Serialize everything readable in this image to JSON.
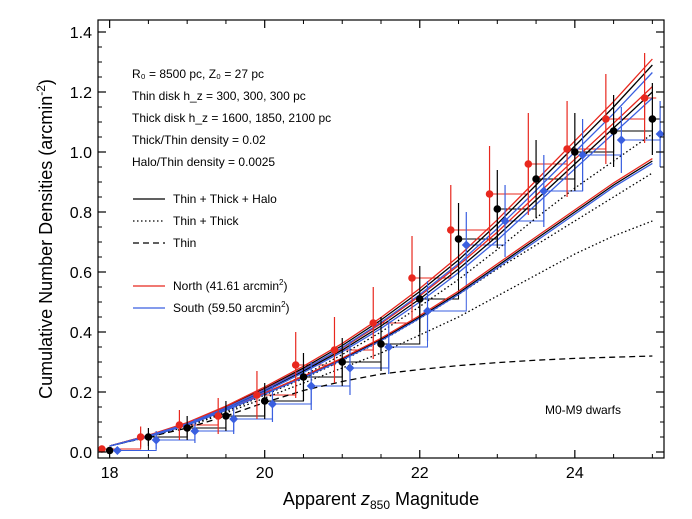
{
  "chart_data": {
    "type": "line",
    "xlabel_prefix": "Apparent ",
    "xlabel_var": "z",
    "xlabel_sub": "850",
    "xlabel_suffix": " Magnitude",
    "ylabel": "Cumulative Number Densities (arcmin",
    "ylabel_sup": "-2",
    "ylabel_close": ")",
    "xlim": [
      17.85,
      25.15
    ],
    "ylim": [
      -0.02,
      1.44
    ],
    "xticks": [
      18,
      20,
      22,
      24
    ],
    "xtick_labels": [
      "18",
      "20",
      "22",
      "24"
    ],
    "yticks": [
      0.0,
      0.2,
      0.4,
      0.6,
      0.8,
      1.0,
      1.2,
      1.4
    ],
    "ytick_labels": [
      "0.0",
      "0.2",
      "0.4",
      "0.6",
      "0.8",
      "1.0",
      "1.2",
      "1.4"
    ],
    "annotations": [
      {
        "id": "r0",
        "text": "R₀ = 8500 pc, Z₀ = 27 pc"
      },
      {
        "id": "thin",
        "text": "Thin disk h_z = 300, 300, 300 pc"
      },
      {
        "id": "thick",
        "text": "Thick disk h_z = 1600, 1850, 2100 pc"
      },
      {
        "id": "ratio1",
        "text": "Thick/Thin density = 0.02"
      },
      {
        "id": "ratio2",
        "text": "Halo/Thin density = 0.0025"
      },
      {
        "id": "label",
        "text": "M0-M9 dwarfs"
      }
    ],
    "legend": [
      {
        "label": "Thin + Thick + Halo",
        "style": "solid",
        "color": "#000000"
      },
      {
        "label": "Thin + Thick",
        "style": "dotted",
        "color": "#000000"
      },
      {
        "label": "Thin",
        "style": "dashed",
        "color": "#000000"
      },
      {
        "label": "North (41.61 arcmin",
        "sup": "2",
        "close": ")",
        "style": "solid",
        "color": "#e8281e"
      },
      {
        "label": "South (59.50 arcmin",
        "sup": "2",
        "close": ")",
        "style": "solid",
        "color": "#3a5fe0"
      }
    ],
    "model_curves": [
      {
        "name": "thin",
        "style": "dashed",
        "color": "#000000",
        "x": [
          18.0,
          18.5,
          19.0,
          19.5,
          20.0,
          20.5,
          21.0,
          21.5,
          22.0,
          22.5,
          23.0,
          23.5,
          24.0,
          24.5,
          25.0
        ],
        "y": [
          0.02,
          0.05,
          0.08,
          0.12,
          0.165,
          0.205,
          0.235,
          0.26,
          0.275,
          0.288,
          0.298,
          0.306,
          0.312,
          0.316,
          0.32
        ]
      },
      {
        "name": "thin+thick low",
        "style": "dotted",
        "color": "#000000",
        "x": [
          18.0,
          18.5,
          19.0,
          19.5,
          20.0,
          20.5,
          21.0,
          21.5,
          22.0,
          22.5,
          23.0,
          23.5,
          24.0,
          24.5,
          25.0
        ],
        "y": [
          0.02,
          0.05,
          0.085,
          0.13,
          0.18,
          0.23,
          0.28,
          0.33,
          0.39,
          0.45,
          0.52,
          0.59,
          0.66,
          0.72,
          0.77
        ]
      },
      {
        "name": "thin+thick mid",
        "style": "dotted",
        "color": "#000000",
        "x": [
          18.0,
          18.5,
          19.0,
          19.5,
          20.0,
          20.5,
          21.0,
          21.5,
          22.0,
          22.5,
          23.0,
          23.5,
          24.0,
          24.5,
          25.0
        ],
        "y": [
          0.02,
          0.052,
          0.088,
          0.135,
          0.19,
          0.245,
          0.305,
          0.37,
          0.445,
          0.525,
          0.61,
          0.69,
          0.77,
          0.85,
          0.93
        ]
      },
      {
        "name": "thin+thick high",
        "style": "dotted",
        "color": "#000000",
        "x": [
          18.0,
          18.5,
          19.0,
          19.5,
          20.0,
          20.5,
          21.0,
          21.5,
          22.0,
          22.5,
          23.0,
          23.5,
          24.0,
          24.5,
          25.0
        ],
        "y": [
          0.02,
          0.053,
          0.09,
          0.14,
          0.195,
          0.255,
          0.325,
          0.4,
          0.485,
          0.575,
          0.675,
          0.78,
          0.88,
          0.97,
          1.06
        ]
      },
      {
        "name": "all low",
        "style": "solid",
        "color": "#000000",
        "x": [
          18.0,
          18.5,
          19.0,
          19.5,
          20.0,
          20.5,
          21.0,
          21.5,
          22.0,
          22.5,
          23.0,
          23.5,
          24.0,
          24.5,
          25.0
        ],
        "y": [
          0.02,
          0.052,
          0.09,
          0.14,
          0.195,
          0.25,
          0.31,
          0.375,
          0.45,
          0.53,
          0.62,
          0.71,
          0.8,
          0.89,
          0.97
        ]
      },
      {
        "name": "all mid",
        "style": "solid",
        "color": "#000000",
        "x": [
          18.0,
          18.5,
          19.0,
          19.5,
          20.0,
          20.5,
          21.0,
          21.5,
          22.0,
          22.5,
          23.0,
          23.5,
          24.0,
          24.5,
          25.0
        ],
        "y": [
          0.02,
          0.054,
          0.093,
          0.145,
          0.205,
          0.27,
          0.34,
          0.42,
          0.51,
          0.61,
          0.72,
          0.84,
          0.96,
          1.08,
          1.2
        ]
      },
      {
        "name": "all high",
        "style": "solid",
        "color": "#000000",
        "x": [
          18.0,
          18.5,
          19.0,
          19.5,
          20.0,
          20.5,
          21.0,
          21.5,
          22.0,
          22.5,
          23.0,
          23.5,
          24.0,
          24.5,
          25.0
        ],
        "y": [
          0.02,
          0.055,
          0.096,
          0.15,
          0.212,
          0.28,
          0.355,
          0.44,
          0.535,
          0.64,
          0.76,
          0.89,
          1.02,
          1.15,
          1.29
        ]
      },
      {
        "name": "north fit low",
        "style": "solid",
        "color": "#e8281e",
        "x": [
          18.0,
          18.5,
          19.0,
          19.5,
          20.0,
          20.5,
          21.0,
          21.5,
          22.0,
          22.5,
          23.0,
          23.5,
          24.0,
          24.5,
          25.0
        ],
        "y": [
          0.02,
          0.053,
          0.091,
          0.141,
          0.197,
          0.253,
          0.313,
          0.379,
          0.455,
          0.536,
          0.627,
          0.717,
          0.807,
          0.897,
          0.978
        ]
      },
      {
        "name": "north fit mid",
        "style": "solid",
        "color": "#e8281e",
        "x": [
          18.0,
          18.5,
          19.0,
          19.5,
          20.0,
          20.5,
          21.0,
          21.5,
          22.0,
          22.5,
          23.0,
          23.5,
          24.0,
          24.5,
          25.0
        ],
        "y": [
          0.02,
          0.055,
          0.095,
          0.148,
          0.209,
          0.275,
          0.346,
          0.428,
          0.52,
          0.622,
          0.733,
          0.855,
          0.976,
          1.096,
          1.218
        ]
      },
      {
        "name": "north fit high",
        "style": "solid",
        "color": "#e8281e",
        "x": [
          18.0,
          18.5,
          19.0,
          19.5,
          20.0,
          20.5,
          21.0,
          21.5,
          22.0,
          22.5,
          23.0,
          23.5,
          24.0,
          24.5,
          25.0
        ],
        "y": [
          0.02,
          0.056,
          0.098,
          0.153,
          0.217,
          0.286,
          0.362,
          0.448,
          0.545,
          0.652,
          0.774,
          0.905,
          1.037,
          1.168,
          1.31
        ]
      },
      {
        "name": "south fit low",
        "style": "solid",
        "color": "#3a5fe0",
        "x": [
          18.0,
          18.5,
          19.0,
          19.5,
          20.0,
          20.5,
          21.0,
          21.5,
          22.0,
          22.5,
          23.0,
          23.5,
          24.0,
          24.5,
          25.0
        ],
        "y": [
          0.02,
          0.051,
          0.089,
          0.139,
          0.193,
          0.248,
          0.307,
          0.371,
          0.446,
          0.525,
          0.614,
          0.703,
          0.793,
          0.883,
          0.962
        ]
      },
      {
        "name": "south fit mid",
        "style": "solid",
        "color": "#3a5fe0",
        "x": [
          18.0,
          18.5,
          19.0,
          19.5,
          20.0,
          20.5,
          21.0,
          21.5,
          22.0,
          22.5,
          23.0,
          23.5,
          24.0,
          24.5,
          25.0
        ],
        "y": [
          0.02,
          0.053,
          0.091,
          0.142,
          0.201,
          0.265,
          0.334,
          0.412,
          0.5,
          0.598,
          0.706,
          0.825,
          0.944,
          1.062,
          1.18
        ]
      },
      {
        "name": "south fit high",
        "style": "solid",
        "color": "#3a5fe0",
        "x": [
          18.0,
          18.5,
          19.0,
          19.5,
          20.0,
          20.5,
          21.0,
          21.5,
          22.0,
          22.5,
          23.0,
          23.5,
          24.0,
          24.5,
          25.0
        ],
        "y": [
          0.02,
          0.054,
          0.094,
          0.147,
          0.207,
          0.274,
          0.348,
          0.432,
          0.525,
          0.628,
          0.745,
          0.872,
          1.0,
          1.128,
          1.265
        ]
      }
    ],
    "series": [
      {
        "name": "North",
        "color": "#e8281e",
        "marker": "circle",
        "x": [
          17.9,
          18.4,
          18.9,
          19.4,
          19.9,
          20.4,
          20.9,
          21.4,
          21.9,
          22.4,
          22.9,
          23.4,
          23.9,
          24.4,
          24.9
        ],
        "y": [
          0.01,
          0.05,
          0.09,
          0.12,
          0.19,
          0.29,
          0.34,
          0.43,
          0.58,
          0.74,
          0.86,
          0.96,
          1.01,
          1.11,
          1.18
        ],
        "err": [
          0.012,
          0.035,
          0.05,
          0.06,
          0.08,
          0.11,
          0.11,
          0.12,
          0.14,
          0.15,
          0.16,
          0.17,
          0.16,
          0.15,
          0.15
        ]
      },
      {
        "name": "Combined",
        "color": "#000000",
        "marker": "circle",
        "x": [
          18.0,
          18.5,
          19.0,
          19.5,
          20.0,
          20.5,
          21.0,
          21.5,
          22.0,
          22.5,
          23.0,
          23.5,
          24.0,
          24.5,
          25.0
        ],
        "y": [
          0.005,
          0.05,
          0.08,
          0.12,
          0.17,
          0.25,
          0.3,
          0.36,
          0.51,
          0.71,
          0.81,
          0.91,
          1.0,
          1.07,
          1.11
        ],
        "err": [
          0.01,
          0.03,
          0.04,
          0.05,
          0.06,
          0.08,
          0.08,
          0.09,
          0.11,
          0.12,
          0.13,
          0.13,
          0.13,
          0.12,
          0.12
        ]
      },
      {
        "name": "South",
        "color": "#3a5fe0",
        "marker": "diamond",
        "x": [
          18.1,
          18.6,
          19.1,
          19.6,
          20.1,
          20.6,
          21.1,
          21.6,
          22.1,
          22.6,
          23.1,
          23.6,
          24.1,
          24.6,
          25.1
        ],
        "y": [
          0.005,
          0.04,
          0.07,
          0.11,
          0.16,
          0.22,
          0.28,
          0.35,
          0.47,
          0.69,
          0.77,
          0.87,
          0.99,
          1.04,
          1.06
        ],
        "err": [
          0.01,
          0.03,
          0.04,
          0.05,
          0.06,
          0.08,
          0.09,
          0.09,
          0.1,
          0.11,
          0.12,
          0.12,
          0.12,
          0.11,
          0.11
        ]
      }
    ],
    "histograms": [
      {
        "name": "North histogram",
        "color": "#e8281e",
        "edges": [
          17.9,
          18.4,
          18.9,
          19.4,
          19.9,
          20.4,
          20.9,
          21.4,
          21.9,
          22.4,
          22.9,
          23.4,
          23.9,
          24.4,
          24.9,
          25.05
        ],
        "y": [
          0.01,
          0.05,
          0.09,
          0.12,
          0.19,
          0.29,
          0.34,
          0.43,
          0.58,
          0.74,
          0.86,
          0.96,
          1.01,
          1.11,
          1.18
        ]
      },
      {
        "name": "Combined histogram",
        "color": "#000000",
        "edges": [
          18.0,
          18.5,
          19.0,
          19.5,
          20.0,
          20.5,
          21.0,
          21.5,
          22.0,
          22.5,
          23.0,
          23.5,
          24.0,
          24.5,
          25.0,
          25.1
        ],
        "y": [
          0.005,
          0.05,
          0.08,
          0.12,
          0.17,
          0.25,
          0.3,
          0.36,
          0.51,
          0.71,
          0.81,
          0.91,
          1.0,
          1.07,
          1.11
        ]
      },
      {
        "name": "South histogram",
        "color": "#3a5fe0",
        "edges": [
          18.1,
          18.6,
          19.1,
          19.6,
          20.1,
          20.6,
          21.1,
          21.6,
          22.1,
          22.6,
          23.1,
          23.6,
          24.1,
          24.6,
          25.1,
          25.15
        ],
        "y": [
          0.005,
          0.04,
          0.07,
          0.11,
          0.16,
          0.22,
          0.28,
          0.35,
          0.47,
          0.69,
          0.77,
          0.87,
          0.99,
          1.04,
          1.06
        ]
      }
    ]
  }
}
